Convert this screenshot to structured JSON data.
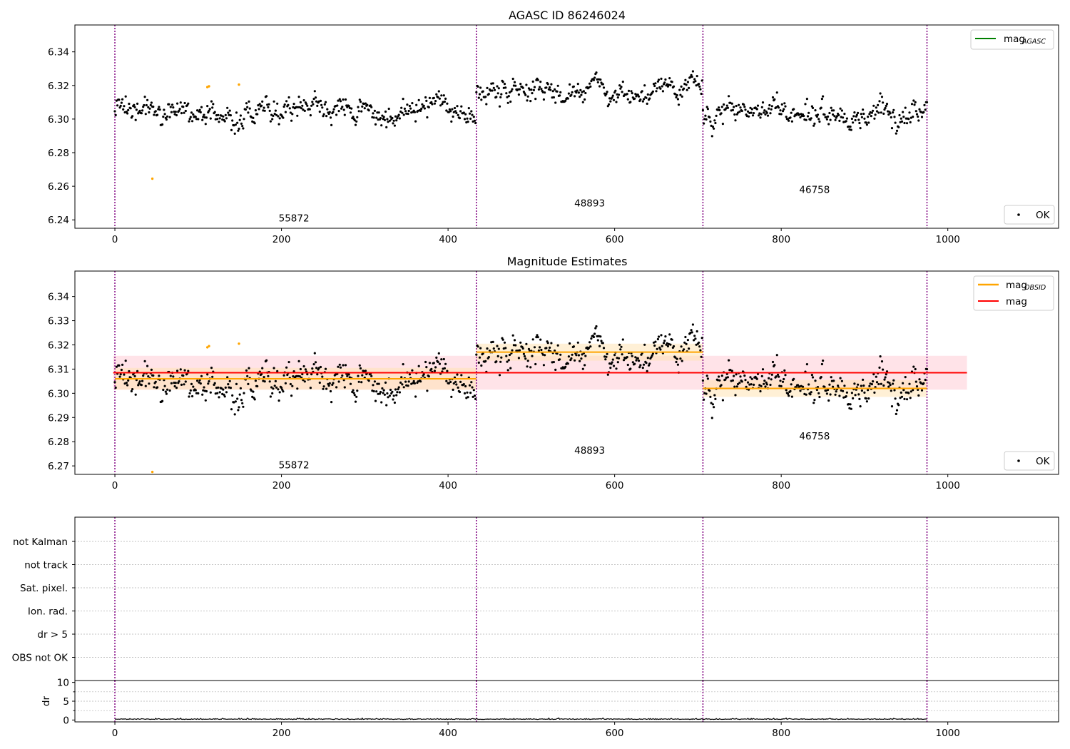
{
  "figure": {
    "background": "#ffffff",
    "colors": {
      "ok_points": "#000000",
      "flagged_points": "#ffa500",
      "mag_agasc": "#008000",
      "mag_obsid": "#ffa500",
      "mag_overall": "#ff0000",
      "band_obsid": "#ffe4b5",
      "band_overall": "#ffc0cb",
      "obs_boundaries": "#800080",
      "grid": "#b0b0b0"
    }
  },
  "obsids": [
    "55872",
    "48893",
    "46758"
  ],
  "chart_data": [
    {
      "type": "scatter",
      "title": "AGASC ID 86246024",
      "xlabel": "",
      "ylabel": "",
      "xlim": [
        -48,
        1133
      ],
      "ylim": [
        6.235,
        6.356
      ],
      "xticks": [
        "0",
        "200",
        "400",
        "600",
        "800",
        "1000"
      ],
      "yticks": [
        "6.24",
        "6.26",
        "6.28",
        "6.30",
        "6.32",
        "6.34"
      ],
      "boundaries": [
        0,
        434,
        706,
        975
      ],
      "obs_labels": [
        {
          "text": "55872",
          "x": 215,
          "y": 6.239
        },
        {
          "text": "48893",
          "x": 570,
          "y": 6.248
        },
        {
          "text": "46758",
          "x": 840,
          "y": 6.256
        }
      ],
      "legends": [
        {
          "position": "upper-right",
          "entries": [
            {
              "label": "mag",
              "subscript": "AGASC",
              "kind": "line",
              "color": "#008000"
            }
          ]
        },
        {
          "position": "lower-right",
          "entries": [
            {
              "label": "OK",
              "kind": "dot",
              "color": "#000000"
            }
          ]
        }
      ],
      "series": [
        {
          "name": "OK",
          "segments": [
            {
              "x0": 0,
              "x1": 433,
              "mean": 6.305,
              "noise": 0.0045
            },
            {
              "x0": 434,
              "x1": 705,
              "mean": 6.317,
              "noise": 0.004
            },
            {
              "x0": 706,
              "x1": 975,
              "mean": 6.302,
              "noise": 0.0045
            }
          ]
        },
        {
          "name": "flagged",
          "points": [
            [
              45,
              6.2645
            ],
            [
              111,
              6.319
            ],
            [
              113,
              6.3195
            ],
            [
              149,
              6.3205
            ]
          ]
        }
      ]
    },
    {
      "type": "scatter",
      "title": "Magnitude Estimates",
      "xlabel": "",
      "ylabel": "",
      "xlim": [
        -48,
        1133
      ],
      "ylim": [
        6.2665,
        6.3505
      ],
      "xticks": [
        "0",
        "200",
        "400",
        "600",
        "800",
        "1000"
      ],
      "yticks": [
        "6.27",
        "6.28",
        "6.29",
        "6.30",
        "6.31",
        "6.32",
        "6.33",
        "6.34"
      ],
      "boundaries": [
        0,
        434,
        706,
        975
      ],
      "obs_labels": [
        {
          "text": "55872",
          "x": 215,
          "y": 6.269
        },
        {
          "text": "48893",
          "x": 570,
          "y": 6.275
        },
        {
          "text": "46758",
          "x": 840,
          "y": 6.281
        }
      ],
      "legends": [
        {
          "position": "upper-right",
          "entries": [
            {
              "label": "mag",
              "subscript": "OBSID",
              "kind": "line",
              "color": "#ffa500"
            },
            {
              "label": "mag",
              "kind": "line",
              "color": "#ff0000"
            }
          ]
        },
        {
          "position": "lower-right",
          "entries": [
            {
              "label": "OK",
              "kind": "dot",
              "color": "#000000"
            }
          ]
        }
      ],
      "mag_overall": {
        "value": 6.3085,
        "band": [
          6.3015,
          6.3155
        ],
        "x": [
          -2,
          1023
        ]
      },
      "mag_obsid": [
        {
          "x0": 0,
          "x1": 434,
          "value": 6.306,
          "band": [
            6.3015,
            6.3105
          ]
        },
        {
          "x0": 434,
          "x1": 706,
          "value": 6.317,
          "band": [
            6.3135,
            6.3205
          ]
        },
        {
          "x0": 706,
          "x1": 975,
          "value": 6.302,
          "band": [
            6.2985,
            6.3055
          ]
        }
      ],
      "series": [
        {
          "name": "OK",
          "segments": [
            {
              "x0": 0,
              "x1": 433,
              "mean": 6.305,
              "noise": 0.0045
            },
            {
              "x0": 434,
              "x1": 705,
              "mean": 6.317,
              "noise": 0.004
            },
            {
              "x0": 706,
              "x1": 975,
              "mean": 6.302,
              "noise": 0.0045
            }
          ]
        },
        {
          "name": "flagged",
          "points": [
            [
              45,
              6.2675
            ],
            [
              111,
              6.319
            ],
            [
              113,
              6.3195
            ],
            [
              149,
              6.3205
            ]
          ]
        }
      ]
    },
    {
      "type": "table",
      "title": "",
      "xlabel": "",
      "ylabel": "",
      "xlim": [
        -48,
        1133
      ],
      "flag_rows": [
        "not Kalman",
        "not track",
        "Sat. pixel.",
        "Ion. rad.",
        "dr > 5",
        "OBS not OK"
      ],
      "flags_set": [],
      "boundaries": [
        0,
        434,
        706,
        975
      ]
    },
    {
      "type": "line",
      "title": "",
      "xlabel": "",
      "ylabel": "dr",
      "xlim": [
        -48,
        1133
      ],
      "ylim": [
        -0.5,
        10.5
      ],
      "xticks": [
        "0",
        "200",
        "400",
        "600",
        "800",
        "1000"
      ],
      "yticks": [
        "0",
        "5",
        "10"
      ],
      "boundaries": [
        0,
        434,
        706,
        975
      ],
      "series": [
        {
          "name": "dr",
          "mean": 0.15,
          "range": [
            0,
            0.7
          ],
          "x0": 0,
          "x1": 975
        }
      ]
    }
  ]
}
